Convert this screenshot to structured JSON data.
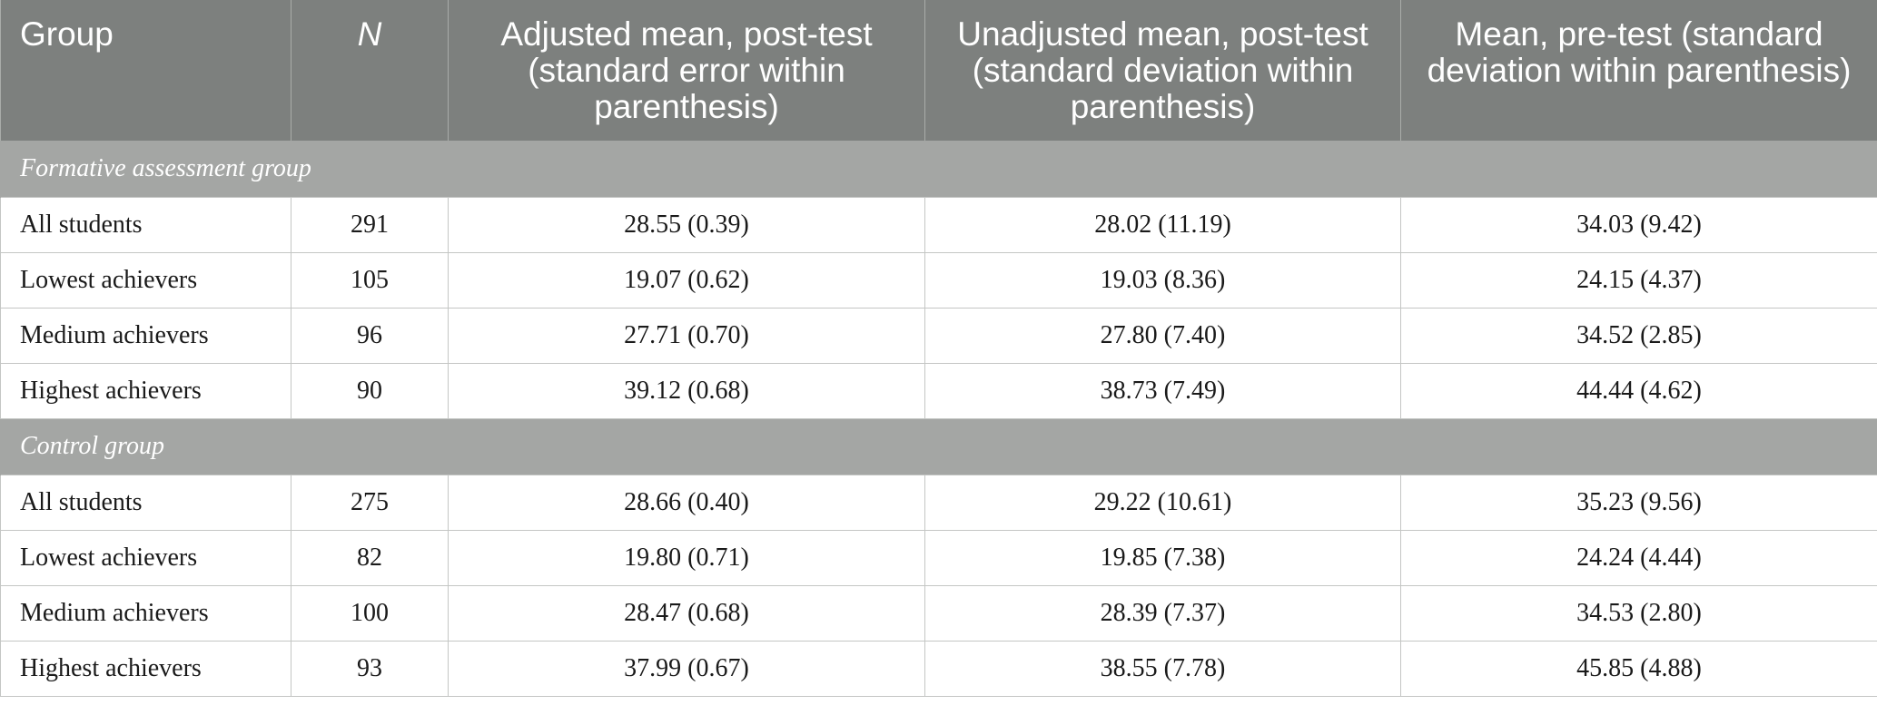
{
  "table": {
    "headers": {
      "group": "Group",
      "n": "N",
      "adjusted": "Adjusted mean, post-test (standard error within parenthesis)",
      "unadjusted": "Unadjusted mean, post-test (standard deviation within parenthesis)",
      "pretest": "Mean, pre-test (standard deviation within parenthesis)"
    },
    "sections": [
      {
        "title": "Formative assessment group",
        "rows": [
          {
            "group": "All students",
            "n": "291",
            "adjusted": "28.55 (0.39)",
            "unadjusted": "28.02 (11.19)",
            "pretest": "34.03 (9.42)"
          },
          {
            "group": "Lowest achievers",
            "n": "105",
            "adjusted": "19.07 (0.62)",
            "unadjusted": "19.03 (8.36)",
            "pretest": "24.15 (4.37)"
          },
          {
            "group": "Medium achievers",
            "n": "96",
            "adjusted": "27.71 (0.70)",
            "unadjusted": "27.80 (7.40)",
            "pretest": "34.52 (2.85)"
          },
          {
            "group": "Highest achievers",
            "n": "90",
            "adjusted": "39.12 (0.68)",
            "unadjusted": "38.73 (7.49)",
            "pretest": "44.44 (4.62)"
          }
        ]
      },
      {
        "title": "Control group",
        "rows": [
          {
            "group": "All students",
            "n": "275",
            "adjusted": "28.66 (0.40)",
            "unadjusted": "29.22 (10.61)",
            "pretest": "35.23 (9.56)"
          },
          {
            "group": "Lowest achievers",
            "n": "82",
            "adjusted": "19.80 (0.71)",
            "unadjusted": "19.85 (7.38)",
            "pretest": "24.24 (4.44)"
          },
          {
            "group": "Medium achievers",
            "n": "100",
            "adjusted": "28.47 (0.68)",
            "unadjusted": "28.39 (7.37)",
            "pretest": "34.53 (2.80)"
          },
          {
            "group": "Highest achievers",
            "n": "93",
            "adjusted": "37.99 (0.67)",
            "unadjusted": "38.55 (7.78)",
            "pretest": "45.85 (4.88)"
          }
        ]
      }
    ]
  }
}
